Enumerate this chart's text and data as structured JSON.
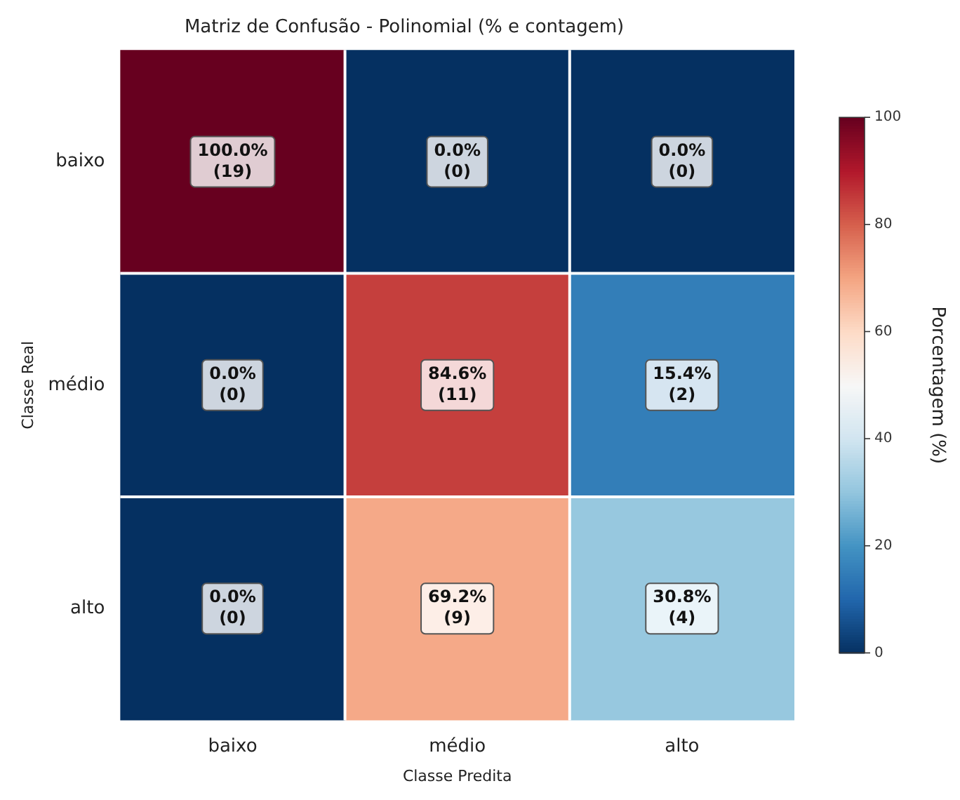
{
  "chart_data": {
    "type": "heatmap",
    "title": "Matriz de Confusão - Polinomial (% e contagem)",
    "xlabel": "Classe Predita",
    "ylabel": "Classe Real",
    "clabel": "Porcentagem (%)",
    "categories": [
      "baixo",
      "médio",
      "alto"
    ],
    "y_categories": [
      "baixo",
      "médio",
      "alto"
    ],
    "cells": [
      [
        100.0,
        0.0,
        0.0
      ],
      [
        0.0,
        84.6,
        15.4
      ],
      [
        0.0,
        69.2,
        30.8
      ]
    ],
    "cell_labels": [
      [
        "100.0%\n(19)",
        "0.0%\n(0)",
        "0.0%\n(0)"
      ],
      [
        "0.0%\n(0)",
        "84.6%\n(11)",
        "15.4%\n(2)"
      ],
      [
        "0.0%\n(0)",
        "69.2%\n(9)",
        "30.8%\n(4)"
      ]
    ],
    "clim": [
      0,
      100
    ],
    "cticks": [
      0,
      20,
      40,
      60,
      80,
      100
    ]
  }
}
